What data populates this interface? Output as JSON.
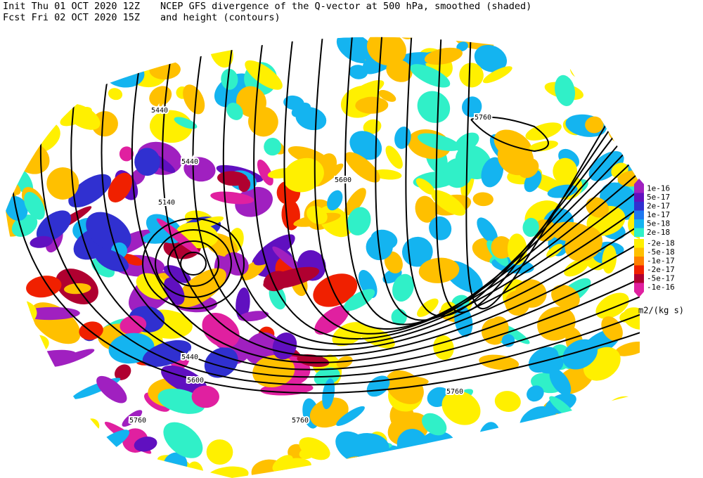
{
  "header": {
    "init": "Init  Thu 01 OCT 2020 12Z",
    "fcst": "Fcst Fri 02 OCT 2020 15Z",
    "title_line1": "NCEP GFS divergence of the Q-vector at 500 hPa, smoothed (shaded)",
    "title_line2": "and height (contours)"
  },
  "contour_labels": [
    "5440",
    "5440",
    "5140",
    "5600",
    "5760",
    "5440",
    "5600",
    "5760",
    "5760",
    "5760"
  ],
  "legend": {
    "items": [
      {
        "label": "1e-16",
        "color": "#a020c0"
      },
      {
        "label": "5e-17",
        "color": "#6010c0"
      },
      {
        "label": "2e-17",
        "color": "#3030d0"
      },
      {
        "label": "1e-17",
        "color": "#1e78f0"
      },
      {
        "label": "5e-18",
        "color": "#14b4f0"
      },
      {
        "label": "2e-18",
        "color": "#30f0c8"
      },
      {
        "label": "-2e-18",
        "color": "#fff000"
      },
      {
        "label": "-5e-18",
        "color": "#ffc000"
      },
      {
        "label": "-1e-17",
        "color": "#ff8000"
      },
      {
        "label": "-2e-17",
        "color": "#f02000"
      },
      {
        "label": "-5e-17",
        "color": "#b00030"
      },
      {
        "label": "-1e-16",
        "color": "#e020a0"
      }
    ],
    "units": "m2/(kg s)"
  }
}
